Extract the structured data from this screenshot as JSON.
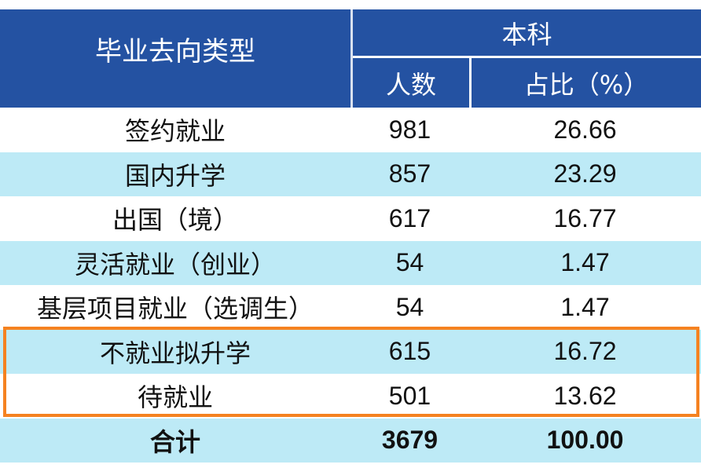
{
  "header": {
    "type_label": "毕业去向类型",
    "group_label": "本科",
    "count_label": "人数",
    "percent_label": "占比（%）"
  },
  "rows": [
    {
      "name": "签约就业",
      "count": "981",
      "percent": "26.66"
    },
    {
      "name": "国内升学",
      "count": "857",
      "percent": "23.29"
    },
    {
      "name": "出国（境）",
      "count": "617",
      "percent": "16.77"
    },
    {
      "name": "灵活就业（创业）",
      "count": "54",
      "percent": "1.47"
    },
    {
      "name": "基层项目就业（选调生）",
      "count": "54",
      "percent": "1.47"
    },
    {
      "name": "不就业拟升学",
      "count": "615",
      "percent": "16.72"
    },
    {
      "name": "待就业",
      "count": "501",
      "percent": "13.62"
    }
  ],
  "total": {
    "name": "合计",
    "count": "3679",
    "percent": "100.00"
  },
  "colors": {
    "header_bg": "#2452a2",
    "alt_row_bg": "#bdeaf6",
    "highlight_border": "#f58220"
  }
}
